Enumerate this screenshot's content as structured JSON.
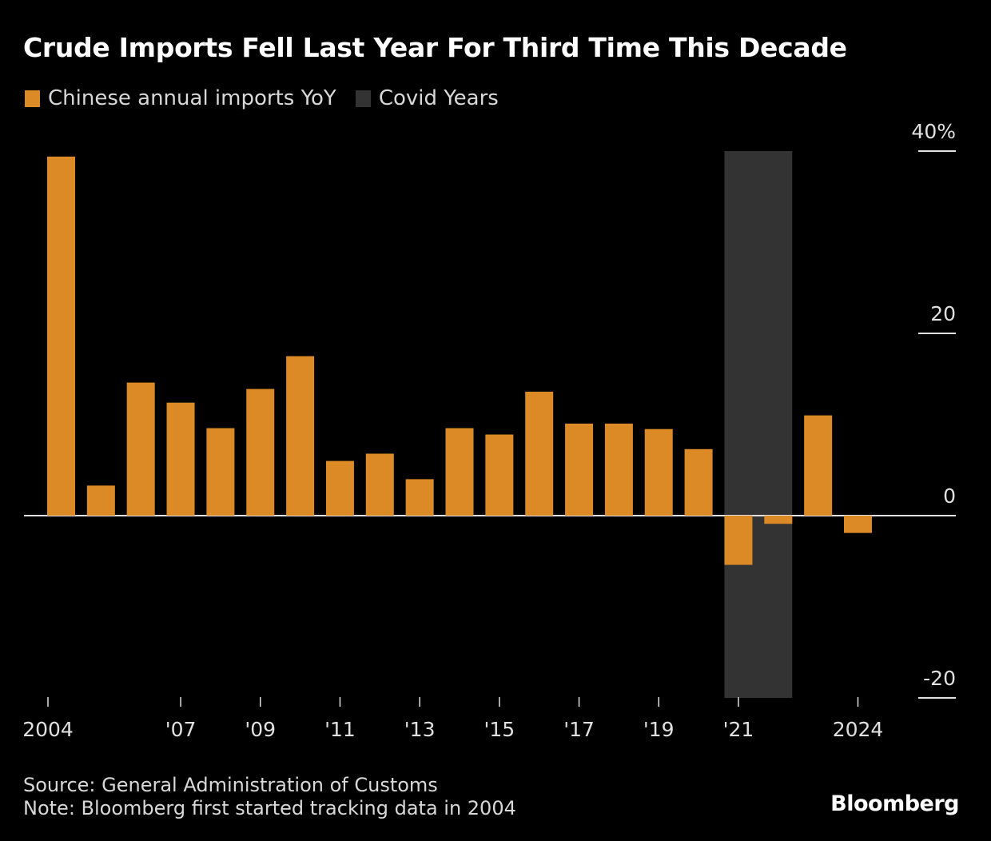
{
  "chart_data": {
    "type": "bar",
    "title": "Crude Imports Fell Last Year For Third Time This Decade",
    "legend": [
      {
        "label": "Chinese annual imports YoY",
        "color": "#dc8a26"
      },
      {
        "label": "Covid Years",
        "color": "#333333"
      }
    ],
    "legend_position": "top-left",
    "categories": [
      "2004",
      "2005",
      "2006",
      "2007",
      "2008",
      "2009",
      "2010",
      "2011",
      "2012",
      "2013",
      "2014",
      "2015",
      "2016",
      "2017",
      "2018",
      "2019",
      "2020",
      "2021",
      "2022",
      "2023",
      "2024"
    ],
    "series": [
      {
        "name": "Chinese annual imports YoY",
        "unit": "%",
        "values": [
          39.4,
          3.3,
          14.6,
          12.4,
          9.6,
          13.9,
          17.5,
          6.0,
          6.8,
          4.0,
          9.6,
          8.9,
          13.6,
          10.1,
          10.1,
          9.5,
          7.3,
          -5.4,
          -0.9,
          11.0,
          -1.9
        ]
      }
    ],
    "shaded_ranges": [
      {
        "label": "Covid Years",
        "from": "2021",
        "to": "2022"
      }
    ],
    "x_ticks": [
      {
        "year": 2004,
        "label": "2004"
      },
      {
        "year": 2007,
        "label": "'07"
      },
      {
        "year": 2009,
        "label": "'09"
      },
      {
        "year": 2011,
        "label": "'11"
      },
      {
        "year": 2013,
        "label": "'13"
      },
      {
        "year": 2015,
        "label": "'15"
      },
      {
        "year": 2017,
        "label": "'17"
      },
      {
        "year": 2019,
        "label": "'19"
      },
      {
        "year": 2021,
        "label": "'21"
      },
      {
        "year": 2024,
        "label": "2024"
      }
    ],
    "y_ticks": [
      {
        "value": 40,
        "label": "40%"
      },
      {
        "value": 20,
        "label": "20"
      },
      {
        "value": 0,
        "label": "0"
      },
      {
        "value": -20,
        "label": "-20"
      }
    ],
    "ylim": [
      -20,
      40
    ],
    "xlabel": "",
    "ylabel": "",
    "y_axis_side": "right",
    "grid": false
  },
  "footer": {
    "source": "Source: General Administration of Customs",
    "note": "Note: Bloomberg first started tracking data in 2004"
  },
  "brand": "Bloomberg",
  "colors": {
    "bar": "#dc8a26",
    "covid": "#333333",
    "axis": "#e0e0e0",
    "background": "#000000"
  }
}
